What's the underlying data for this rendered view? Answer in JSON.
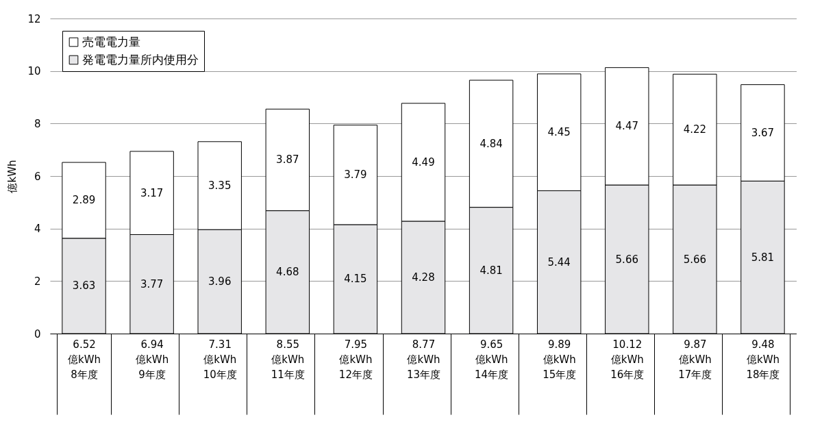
{
  "chart_data": {
    "type": "bar",
    "stacked": true,
    "ylabel": "億kWh",
    "categories": [
      "8年度",
      "9年度",
      "10年度",
      "11年度",
      "12年度",
      "13年度",
      "14年度",
      "15年度",
      "16年度",
      "17年度",
      "18年度"
    ],
    "series": [
      {
        "name": "発電電力量所内使用分",
        "color": "#e6e6e8",
        "values": [
          3.63,
          3.77,
          3.96,
          4.68,
          4.15,
          4.28,
          4.81,
          5.44,
          5.66,
          5.66,
          5.81
        ]
      },
      {
        "name": "売電電力量",
        "color": "#ffffff",
        "values": [
          2.89,
          3.17,
          3.35,
          3.87,
          3.79,
          4.49,
          4.84,
          4.45,
          4.47,
          4.22,
          3.67
        ]
      }
    ],
    "totals": [
      "6.52 億kWh",
      "6.94 億kWh",
      "7.31 億kWh",
      "8.55 億kWh",
      "7.95 億kWh",
      "8.77 億kWh",
      "9.65 億kWh",
      "9.89 億kWh",
      "10.12 億kWh",
      "9.87 億kWh",
      "9.48 億kWh"
    ],
    "data_labels": true,
    "ylim": [
      0,
      12
    ],
    "yticks": [
      0,
      2,
      4,
      6,
      8,
      10,
      12
    ],
    "grid": "y",
    "legend": "top left"
  }
}
